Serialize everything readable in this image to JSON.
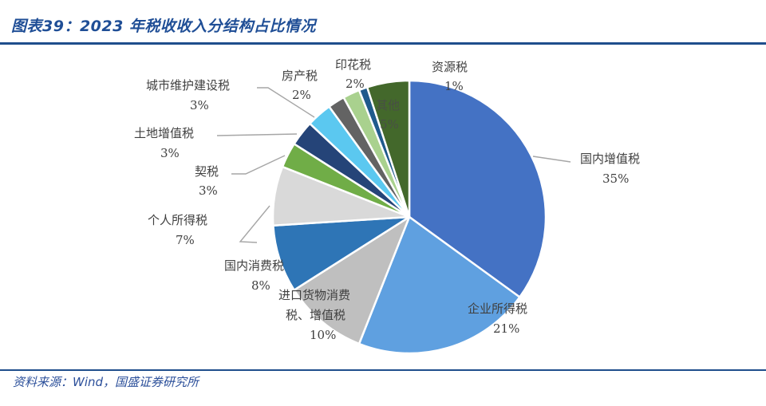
{
  "header": {
    "title": "图表39：2023 年税收收入分结构占比情况"
  },
  "footer": {
    "source": "资料来源：Wind，国盛证券研究所"
  },
  "chart_data": {
    "type": "pie",
    "title": "2023 年税收收入分结构占比情况",
    "start_angle_deg": 0,
    "direction": "clockwise",
    "unit": "%",
    "slices": [
      {
        "label": "国内增值税",
        "value": 35,
        "pct_label": "35%",
        "color": "#4472c4"
      },
      {
        "label": "企业所得税",
        "value": 21,
        "pct_label": "21%",
        "color": "#5fa0e0"
      },
      {
        "label": "进口货物消费税、增值税",
        "value": 10,
        "pct_label": "10%",
        "color": "#bfbfbf"
      },
      {
        "label": "国内消费税",
        "value": 8,
        "pct_label": "8%",
        "color": "#2e75b6"
      },
      {
        "label": "个人所得税",
        "value": 7,
        "pct_label": "7%",
        "color": "#d9d9d9"
      },
      {
        "label": "契税",
        "value": 3,
        "pct_label": "3%",
        "color": "#70ad47"
      },
      {
        "label": "土地增值税",
        "value": 3,
        "pct_label": "3%",
        "color": "#254478"
      },
      {
        "label": "城市维护建设税",
        "value": 3,
        "pct_label": "3%",
        "color": "#5bc8f0"
      },
      {
        "label": "房产税",
        "value": 2,
        "pct_label": "2%",
        "color": "#636363"
      },
      {
        "label": "印花税",
        "value": 2,
        "pct_label": "2%",
        "color": "#a9d18e"
      },
      {
        "label": "资源税",
        "value": 1,
        "pct_label": "1%",
        "color": "#1f5a8c"
      },
      {
        "label": "其他",
        "value": 5,
        "pct_label": "5%",
        "color": "#43682b"
      }
    ],
    "labels": {
      "s0": {
        "name": "国内增值税",
        "pct": "35%"
      },
      "s1": {
        "name": "企业所得税",
        "pct": "21%"
      },
      "s2": {
        "name1": "进口货物消费",
        "name2": "税、增值税",
        "pct": "10%"
      },
      "s3": {
        "name": "国内消费税",
        "pct": "8%"
      },
      "s4": {
        "name": "个人所得税",
        "pct": "7%"
      },
      "s5": {
        "name": "契税",
        "pct": "3%"
      },
      "s6": {
        "name": "土地增值税",
        "pct": "3%"
      },
      "s7": {
        "name": "城市维护建设税",
        "pct": "3%"
      },
      "s8": {
        "name": "房产税",
        "pct": "2%"
      },
      "s9": {
        "name": "印花税",
        "pct": "2%"
      },
      "s10": {
        "name": "资源税",
        "pct": "1%"
      },
      "s11": {
        "name": "其他",
        "pct": "5%"
      }
    }
  }
}
